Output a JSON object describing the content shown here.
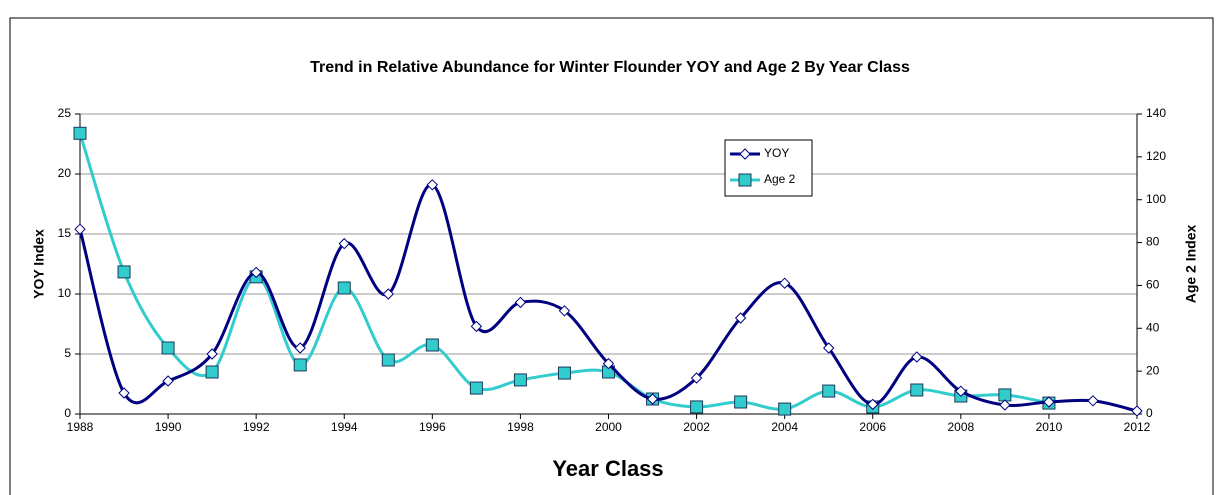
{
  "chart_data": {
    "type": "line",
    "title": "Trend in Relative Abundance for Winter Flounder YOY and Age 2 By Year Class",
    "x_label": "Year Class",
    "y_label": "YOY Index",
    "y2_label": "Age 2 Index",
    "x": [
      1988,
      1989,
      1990,
      1991,
      1992,
      1993,
      1994,
      1995,
      1996,
      1997,
      1998,
      1999,
      2000,
      2001,
      2002,
      2003,
      2004,
      2005,
      2006,
      2007,
      2008,
      2009,
      2010,
      2011,
      2012
    ],
    "series": [
      {
        "name": "YOY",
        "color": "#000080",
        "marker": "diamond",
        "values": [
          15.4,
          1.75,
          2.75,
          5.0,
          11.8,
          5.5,
          14.2,
          10.0,
          19.1,
          7.3,
          9.3,
          8.6,
          4.2,
          1.25,
          3.0,
          8.0,
          10.9,
          5.5,
          0.8,
          4.75,
          1.9,
          0.75,
          1.0,
          1.1,
          0.25
        ]
      },
      {
        "name": "Age 2",
        "color": "#33CCCC",
        "marker": "square",
        "axis": "y2",
        "values": [
          131,
          66.3,
          30.8,
          19.6,
          64,
          22.9,
          58.8,
          25.2,
          32.2,
          12.1,
          15.9,
          19.1,
          19.6,
          7,
          3.3,
          5.6,
          2.3,
          10.7,
          3.3,
          11.2,
          8.4,
          8.9,
          5.1,
          null,
          null
        ]
      }
    ],
    "xlim": [
      1988,
      2012
    ],
    "xticks": [
      1988,
      1990,
      1992,
      1994,
      1996,
      1998,
      2000,
      2002,
      2004,
      2006,
      2008,
      2010,
      2012
    ],
    "ylim": [
      0,
      25
    ],
    "yticks": [
      0,
      5,
      10,
      15,
      20,
      25
    ],
    "y2lim": [
      0,
      140
    ],
    "y2ticks": [
      0,
      20,
      40,
      60,
      80,
      100,
      120,
      140
    ],
    "grid": true,
    "smooth": true,
    "legend": "top-right"
  }
}
